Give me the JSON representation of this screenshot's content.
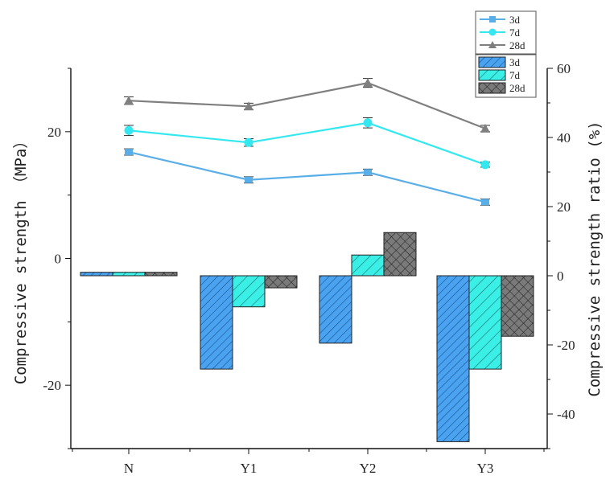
{
  "chart_data": {
    "type": "bar",
    "categories": [
      "N",
      "Y1",
      "Y2",
      "Y3"
    ],
    "xlabel": "",
    "ylabel_left": "Compressive strength （MPa）",
    "ylabel_right": "Compressive strength ratio (%)",
    "ylim_left": [
      -30,
      30
    ],
    "ylim_right": [
      -50,
      60
    ],
    "yticks_left": [
      -20,
      0,
      20
    ],
    "yticks_right": [
      -40,
      -20,
      0,
      20,
      40,
      60
    ],
    "grid": false,
    "legend_placement": "top-right",
    "line_series": [
      {
        "name": "3d",
        "axis": "left",
        "marker": "square",
        "color": "#5aaee8",
        "values": [
          16.8,
          12.4,
          13.6,
          8.9
        ],
        "errors": [
          0.5,
          0.5,
          0.5,
          0.5
        ]
      },
      {
        "name": "7d",
        "axis": "left",
        "marker": "circle",
        "color": "#35e8f0",
        "values": [
          20.2,
          18.3,
          21.4,
          14.8
        ],
        "errors": [
          0.8,
          0.6,
          0.8,
          0.4
        ]
      },
      {
        "name": "28d",
        "axis": "left",
        "marker": "triangle",
        "color": "#7f7f7f",
        "values": [
          24.9,
          24.0,
          27.7,
          20.5
        ],
        "errors": [
          0.6,
          0.5,
          0.7,
          0.5
        ]
      }
    ],
    "bar_series": [
      {
        "name": "3d",
        "axis": "right",
        "color": "#4aa3f0",
        "pattern": "diag-dense",
        "values": [
          1,
          -27,
          -19.5,
          -48
        ]
      },
      {
        "name": "7d",
        "axis": "right",
        "color": "#3aefe6",
        "pattern": "diag-sparse",
        "values": [
          1,
          -9,
          6,
          -27
        ]
      },
      {
        "name": "28d",
        "axis": "right",
        "color": "#7a7a7a",
        "pattern": "crosshatch",
        "values": [
          1,
          -3.5,
          12.5,
          -17.5
        ]
      }
    ]
  }
}
